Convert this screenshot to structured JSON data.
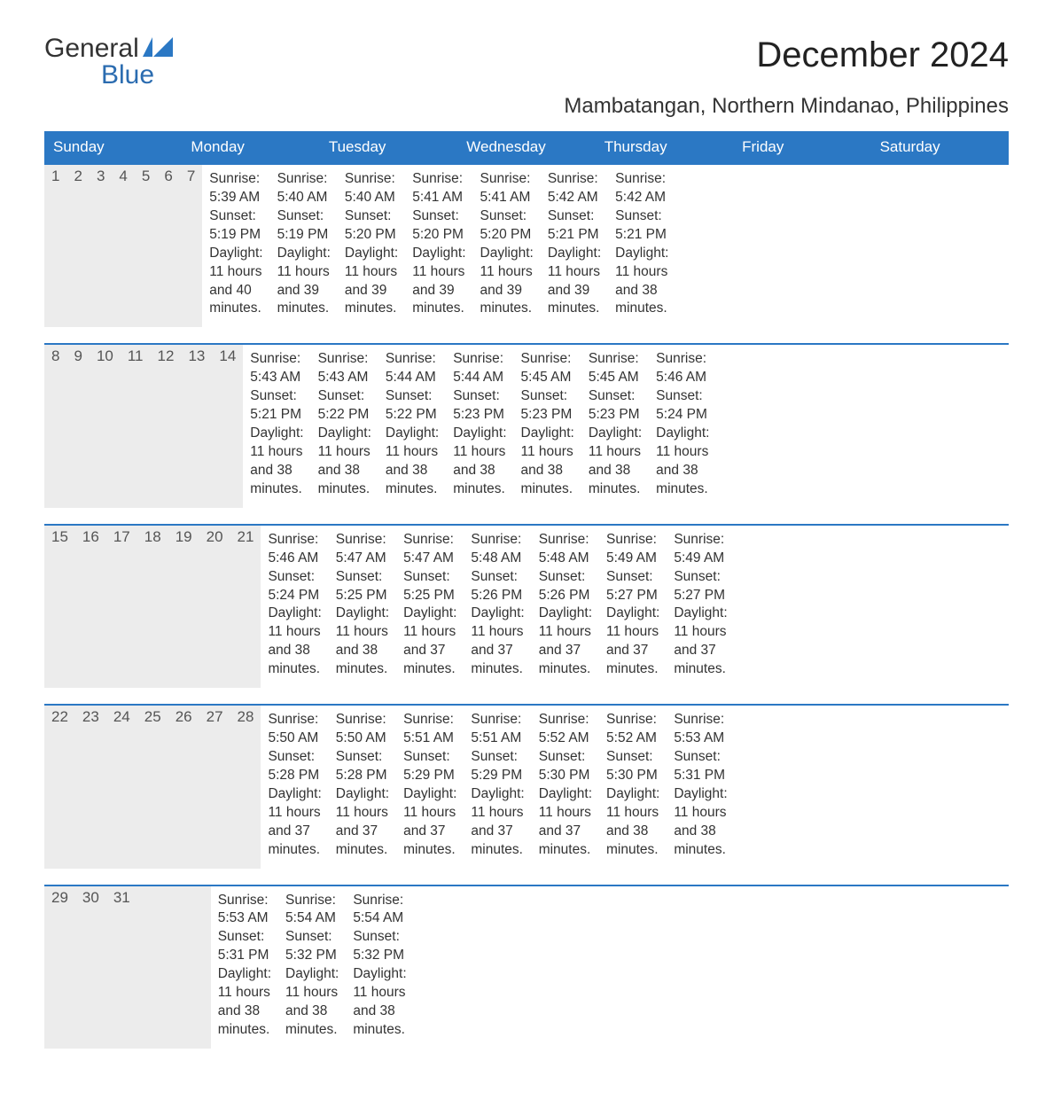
{
  "logo": {
    "line1": "General",
    "line2": "Blue",
    "icon_color": "#2b78c4"
  },
  "title": "December 2024",
  "location": "Mambatangan, Northern Mindanao, Philippines",
  "header_bg": "#2b78c4",
  "header_text_color": "#ffffff",
  "daynum_bg": "#ececec",
  "week_border_color": "#2b78c4",
  "background_color": "#ffffff",
  "text_color": "#333333",
  "font_family": "Arial",
  "title_fontsize": 40,
  "location_fontsize": 24,
  "header_fontsize": 17,
  "body_fontsize": 15.5,
  "day_headers": [
    "Sunday",
    "Monday",
    "Tuesday",
    "Wednesday",
    "Thursday",
    "Friday",
    "Saturday"
  ],
  "weeks": [
    [
      {
        "num": "1",
        "sunrise": "5:39 AM",
        "sunset": "5:19 PM",
        "daylight": "11 hours and 40 minutes."
      },
      {
        "num": "2",
        "sunrise": "5:40 AM",
        "sunset": "5:19 PM",
        "daylight": "11 hours and 39 minutes."
      },
      {
        "num": "3",
        "sunrise": "5:40 AM",
        "sunset": "5:20 PM",
        "daylight": "11 hours and 39 minutes."
      },
      {
        "num": "4",
        "sunrise": "5:41 AM",
        "sunset": "5:20 PM",
        "daylight": "11 hours and 39 minutes."
      },
      {
        "num": "5",
        "sunrise": "5:41 AM",
        "sunset": "5:20 PM",
        "daylight": "11 hours and 39 minutes."
      },
      {
        "num": "6",
        "sunrise": "5:42 AM",
        "sunset": "5:21 PM",
        "daylight": "11 hours and 39 minutes."
      },
      {
        "num": "7",
        "sunrise": "5:42 AM",
        "sunset": "5:21 PM",
        "daylight": "11 hours and 38 minutes."
      }
    ],
    [
      {
        "num": "8",
        "sunrise": "5:43 AM",
        "sunset": "5:21 PM",
        "daylight": "11 hours and 38 minutes."
      },
      {
        "num": "9",
        "sunrise": "5:43 AM",
        "sunset": "5:22 PM",
        "daylight": "11 hours and 38 minutes."
      },
      {
        "num": "10",
        "sunrise": "5:44 AM",
        "sunset": "5:22 PM",
        "daylight": "11 hours and 38 minutes."
      },
      {
        "num": "11",
        "sunrise": "5:44 AM",
        "sunset": "5:23 PM",
        "daylight": "11 hours and 38 minutes."
      },
      {
        "num": "12",
        "sunrise": "5:45 AM",
        "sunset": "5:23 PM",
        "daylight": "11 hours and 38 minutes."
      },
      {
        "num": "13",
        "sunrise": "5:45 AM",
        "sunset": "5:23 PM",
        "daylight": "11 hours and 38 minutes."
      },
      {
        "num": "14",
        "sunrise": "5:46 AM",
        "sunset": "5:24 PM",
        "daylight": "11 hours and 38 minutes."
      }
    ],
    [
      {
        "num": "15",
        "sunrise": "5:46 AM",
        "sunset": "5:24 PM",
        "daylight": "11 hours and 38 minutes."
      },
      {
        "num": "16",
        "sunrise": "5:47 AM",
        "sunset": "5:25 PM",
        "daylight": "11 hours and 38 minutes."
      },
      {
        "num": "17",
        "sunrise": "5:47 AM",
        "sunset": "5:25 PM",
        "daylight": "11 hours and 37 minutes."
      },
      {
        "num": "18",
        "sunrise": "5:48 AM",
        "sunset": "5:26 PM",
        "daylight": "11 hours and 37 minutes."
      },
      {
        "num": "19",
        "sunrise": "5:48 AM",
        "sunset": "5:26 PM",
        "daylight": "11 hours and 37 minutes."
      },
      {
        "num": "20",
        "sunrise": "5:49 AM",
        "sunset": "5:27 PM",
        "daylight": "11 hours and 37 minutes."
      },
      {
        "num": "21",
        "sunrise": "5:49 AM",
        "sunset": "5:27 PM",
        "daylight": "11 hours and 37 minutes."
      }
    ],
    [
      {
        "num": "22",
        "sunrise": "5:50 AM",
        "sunset": "5:28 PM",
        "daylight": "11 hours and 37 minutes."
      },
      {
        "num": "23",
        "sunrise": "5:50 AM",
        "sunset": "5:28 PM",
        "daylight": "11 hours and 37 minutes."
      },
      {
        "num": "24",
        "sunrise": "5:51 AM",
        "sunset": "5:29 PM",
        "daylight": "11 hours and 37 minutes."
      },
      {
        "num": "25",
        "sunrise": "5:51 AM",
        "sunset": "5:29 PM",
        "daylight": "11 hours and 37 minutes."
      },
      {
        "num": "26",
        "sunrise": "5:52 AM",
        "sunset": "5:30 PM",
        "daylight": "11 hours and 37 minutes."
      },
      {
        "num": "27",
        "sunrise": "5:52 AM",
        "sunset": "5:30 PM",
        "daylight": "11 hours and 38 minutes."
      },
      {
        "num": "28",
        "sunrise": "5:53 AM",
        "sunset": "5:31 PM",
        "daylight": "11 hours and 38 minutes."
      }
    ],
    [
      {
        "num": "29",
        "sunrise": "5:53 AM",
        "sunset": "5:31 PM",
        "daylight": "11 hours and 38 minutes."
      },
      {
        "num": "30",
        "sunrise": "5:54 AM",
        "sunset": "5:32 PM",
        "daylight": "11 hours and 38 minutes."
      },
      {
        "num": "31",
        "sunrise": "5:54 AM",
        "sunset": "5:32 PM",
        "daylight": "11 hours and 38 minutes."
      },
      null,
      null,
      null,
      null
    ]
  ],
  "labels": {
    "sunrise": "Sunrise:",
    "sunset": "Sunset:",
    "daylight": "Daylight:"
  }
}
